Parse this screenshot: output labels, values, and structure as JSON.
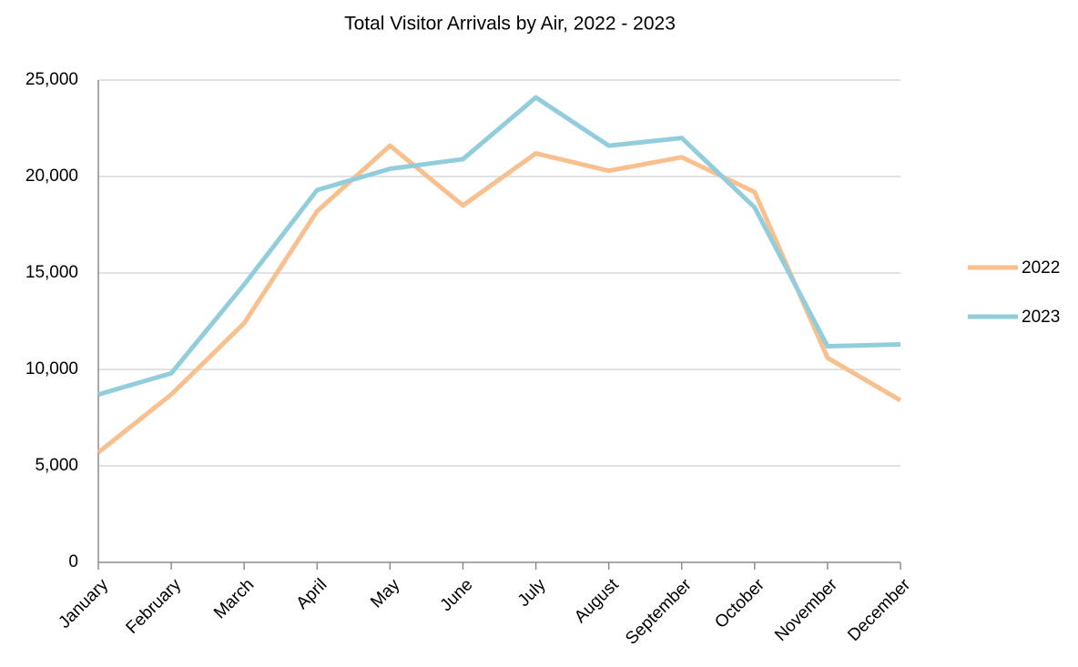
{
  "chart_data": {
    "type": "line",
    "title": "Total Visitor Arrivals by Air, 2022 - 2023",
    "categories": [
      "January",
      "February",
      "March",
      "April",
      "May",
      "June",
      "July",
      "August",
      "September",
      "October",
      "November",
      "December"
    ],
    "series": [
      {
        "name": "2022",
        "color": "#f8c08e",
        "values": [
          5700,
          8700,
          12400,
          18200,
          21600,
          18500,
          21200,
          20300,
          21000,
          19200,
          10600,
          8400
        ]
      },
      {
        "name": "2023",
        "color": "#92cddc",
        "values": [
          8700,
          9800,
          14400,
          19300,
          20400,
          20900,
          24100,
          21600,
          22000,
          18400,
          11200,
          11300
        ]
      }
    ],
    "ylim": [
      0,
      25000
    ],
    "yticks": [
      0,
      {
        "value": 5000,
        "label": "5,000"
      },
      {
        "value": 10000,
        "label": "10,000"
      },
      {
        "value": 15000,
        "label": "15,000"
      },
      {
        "value": 20000,
        "label": "20,000"
      },
      {
        "value": 25000,
        "label": "25,000"
      }
    ],
    "grid": true,
    "legend": "right"
  }
}
